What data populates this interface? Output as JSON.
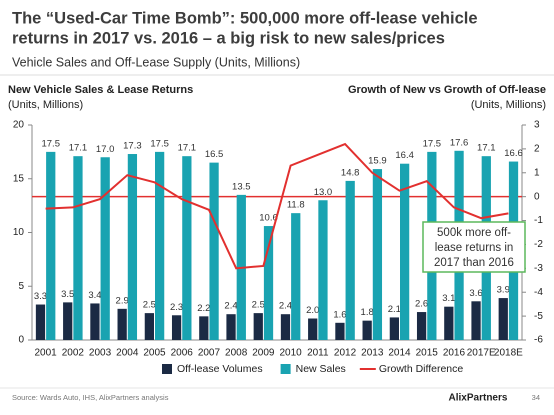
{
  "chart_data": {
    "type": "bar-line",
    "title": [
      "The “Used-Car Time Bomb”: 500,000 more off-lease vehicle",
      "returns in 2017 vs. 2016 – a big risk to new sales/prices"
    ],
    "subtitle": "Vehicle Sales and Off-Lease Supply (Units, Millions)",
    "y_label": [
      "New Vehicle Sales & Lease Returns",
      "(Units, Millions)"
    ],
    "y2_label": [
      "Growth of New vs Growth of Off-lease",
      "(Units, Millions)"
    ],
    "categories": [
      "2001",
      "2002",
      "2003",
      "2004",
      "2005",
      "2006",
      "2007",
      "2008",
      "2009",
      "2010",
      "2011",
      "2012",
      "2013",
      "2014",
      "2015",
      "2016",
      "2017E",
      "2018E"
    ],
    "series": [
      {
        "name": "Off-lease Volumes",
        "color": "#1b2a44",
        "values": [
          3.3,
          3.5,
          3.4,
          2.9,
          2.5,
          2.3,
          2.2,
          2.4,
          2.5,
          2.4,
          2.0,
          1.6,
          1.8,
          2.1,
          2.6,
          3.1,
          3.6,
          3.9
        ],
        "value_labels": [
          "3.3",
          "3.5",
          "3.4",
          "2.9",
          "2.5",
          "2.3",
          "2.2",
          "2.4",
          "2.5",
          "2.4",
          "2.0",
          "1.6",
          "1.8",
          "2.1",
          "2.6",
          "3.1",
          "3.6",
          "3.9"
        ]
      },
      {
        "name": "New Sales",
        "color": "#19a3b1",
        "values": [
          17.5,
          17.1,
          17.0,
          17.3,
          17.5,
          17.1,
          16.5,
          13.5,
          10.6,
          11.8,
          13.0,
          14.8,
          15.9,
          16.4,
          17.5,
          17.6,
          17.1,
          16.6
        ],
        "value_labels": [
          "17.5",
          "17.1",
          "17.0",
          "17.3",
          "17.5",
          "17.1",
          "16.5",
          "13.5",
          "10.6",
          "11.8",
          "13.0",
          "14.8",
          "15.9",
          "16.4",
          "17.5",
          "17.6",
          "17.1",
          "16.6"
        ]
      },
      {
        "name": "Growth Difference",
        "color": "#e2302f",
        "axis": "y2",
        "values": [
          -0.5,
          -0.45,
          -0.1,
          0.9,
          0.6,
          -0.1,
          -0.55,
          -3.0,
          -2.9,
          1.3,
          1.75,
          2.2,
          1.0,
          0.25,
          0.65,
          -0.45,
          -0.9,
          -0.7
        ]
      }
    ],
    "ylim": [
      0,
      20
    ],
    "yticks": [
      0,
      5,
      10,
      15,
      20
    ],
    "y2lim": [
      -6,
      3
    ],
    "y2ticks": [
      -6,
      -5,
      -4,
      -3,
      -2,
      -1,
      0,
      1,
      2,
      3
    ],
    "y2_reference": 0,
    "annotation": [
      "500k more off-",
      "lease returns in",
      "2017 than 2016"
    ],
    "annotation_color": "#5cb85c"
  },
  "footer": {
    "source": "Source: Wards Auto, IHS, AlixPartners analysis",
    "logo": "AlixPartners",
    "page": "34"
  }
}
